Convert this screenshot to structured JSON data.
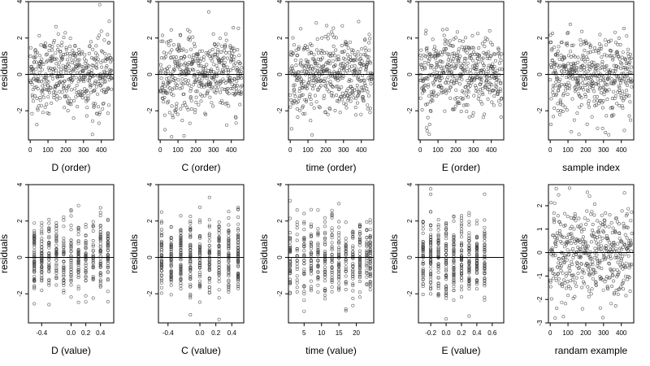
{
  "chart_data": [
    {
      "type": "scatter",
      "xlabel": "D (order)",
      "ylabel": "residuals",
      "xticks": [
        "0",
        "100",
        "200",
        "300",
        "400"
      ],
      "xlim": [
        -10,
        470
      ],
      "yticks": [
        "-2",
        "0",
        "2",
        "4"
      ],
      "ylim": [
        -3.6,
        4.0
      ],
      "x_kind": "index",
      "n": 460
    },
    {
      "type": "scatter",
      "xlabel": "C (order)",
      "ylabel": "residuals",
      "xticks": [
        "0",
        "100",
        "200",
        "300",
        "400"
      ],
      "xlim": [
        -10,
        470
      ],
      "yticks": [
        "-2",
        "0",
        "2",
        "4"
      ],
      "ylim": [
        -3.6,
        4.0
      ],
      "x_kind": "index",
      "n": 460
    },
    {
      "type": "scatter",
      "xlabel": "time (order)",
      "ylabel": "residuals",
      "xticks": [
        "0",
        "100",
        "200",
        "300",
        "400"
      ],
      "xlim": [
        -10,
        470
      ],
      "yticks": [
        "-2",
        "0",
        "2",
        "4"
      ],
      "ylim": [
        -3.6,
        4.0
      ],
      "x_kind": "index",
      "n": 460
    },
    {
      "type": "scatter",
      "xlabel": "E (order)",
      "ylabel": "residuals",
      "xticks": [
        "0",
        "100",
        "200",
        "300",
        "400"
      ],
      "xlim": [
        -10,
        470
      ],
      "yticks": [
        "-2",
        "0",
        "2",
        "4"
      ],
      "ylim": [
        -3.6,
        4.0
      ],
      "x_kind": "index",
      "n": 460
    },
    {
      "type": "scatter",
      "xlabel": "sample index",
      "ylabel": "residuals",
      "xticks": [
        "0",
        "100",
        "200",
        "300",
        "400"
      ],
      "xlim": [
        -10,
        470
      ],
      "yticks": [
        "-2",
        "0",
        "2",
        "4"
      ],
      "ylim": [
        -3.6,
        4.0
      ],
      "x_kind": "index",
      "n": 460
    },
    {
      "type": "scatter",
      "xlabel": "D (value)",
      "ylabel": "residuals",
      "xticks": [
        "-0.4",
        "0.0",
        "0.2",
        "0.4"
      ],
      "xlim": [
        -0.58,
        0.58
      ],
      "yticks": [
        "-2",
        "0",
        "2",
        "4"
      ],
      "ylim": [
        -3.6,
        4.0
      ],
      "x_kind": "discrete",
      "x_levels": [
        -0.5,
        -0.4,
        -0.3,
        -0.2,
        -0.1,
        0.0,
        0.1,
        0.2,
        0.3,
        0.4,
        0.5
      ],
      "n": 460
    },
    {
      "type": "scatter",
      "xlabel": "C (value)",
      "ylabel": "residuals",
      "xticks": [
        "-0.4",
        "0.0",
        "0.2",
        "0.4"
      ],
      "xlim": [
        -0.52,
        0.55
      ],
      "yticks": [
        "-2",
        "0",
        "2",
        "4"
      ],
      "ylim": [
        -3.6,
        4.0
      ],
      "x_kind": "discrete",
      "x_levels": [
        -0.48,
        -0.36,
        -0.24,
        -0.12,
        0.0,
        0.12,
        0.24,
        0.36,
        0.48
      ],
      "n": 460
    },
    {
      "type": "scatter",
      "xlabel": "time (value)",
      "ylabel": "residuals",
      "xticks": [
        "5",
        "10",
        "15",
        "20"
      ],
      "xlim": [
        0.5,
        25
      ],
      "yticks": [
        "-2",
        "0",
        "2",
        "4"
      ],
      "ylim": [
        -3.6,
        4.0
      ],
      "x_kind": "discrete",
      "x_levels": [
        1,
        3,
        5,
        7,
        9,
        11,
        13,
        15,
        17,
        19,
        21,
        23,
        24
      ],
      "n": 460
    },
    {
      "type": "scatter",
      "xlabel": "E (value)",
      "ylabel": "residuals",
      "xticks": [
        "-0.2",
        "0.0",
        "0.2",
        "0.4",
        "0.6"
      ],
      "xlim": [
        -0.36,
        0.75
      ],
      "yticks": [
        "-2",
        "0",
        "2",
        "4"
      ],
      "ylim": [
        -3.6,
        4.0
      ],
      "x_kind": "discrete",
      "x_levels": [
        -0.3,
        -0.2,
        -0.1,
        0.0,
        0.1,
        0.2,
        0.3,
        0.4,
        0.5
      ],
      "n": 460
    },
    {
      "type": "scatter",
      "xlabel": "randam example",
      "ylabel": "residuals",
      "xticks": [
        "0",
        "100",
        "200",
        "300",
        "400"
      ],
      "xlim": [
        -10,
        470
      ],
      "yticks": [
        "-3",
        "-2",
        "-1",
        "0",
        "1",
        "2"
      ],
      "ylim": [
        -3.0,
        2.9
      ],
      "x_kind": "index",
      "n": 460
    }
  ],
  "colors": {
    "point": "#444444",
    "axis": "#000000",
    "ref_line": "#000000"
  }
}
